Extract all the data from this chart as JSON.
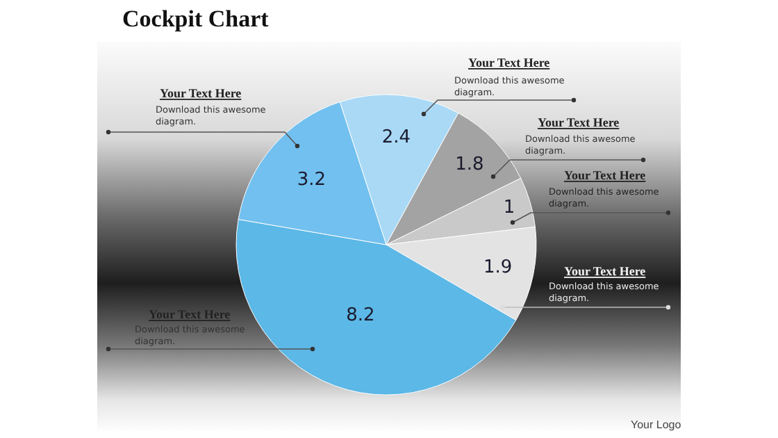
{
  "chart_data": {
    "type": "pie",
    "title": "Cockpit Chart",
    "categories": [
      null,
      null,
      null,
      null,
      null,
      null
    ],
    "values": [
      2.4,
      1.8,
      1,
      1.9,
      8.2,
      3.2
    ],
    "colors": [
      "#a9d9f5",
      "#a3a3a3",
      "#c9c9c9",
      "#e3e3e3",
      "#5cb8e6",
      "#72c0ef"
    ],
    "data_labels": true,
    "annotations": [
      "Your Text Here",
      "Download this awesome diagram.",
      "Your Text Here",
      "Download this awesome diagram.",
      "Your Text Here",
      "Download this awesome diagram.",
      "Your Text Here",
      "Download this awesome diagram.",
      "Your Text Here",
      "Download this awesome diagram.",
      "Your Text Here",
      "Download this awesome diagram.",
      "Your Logo"
    ],
    "legend": false
  }
}
